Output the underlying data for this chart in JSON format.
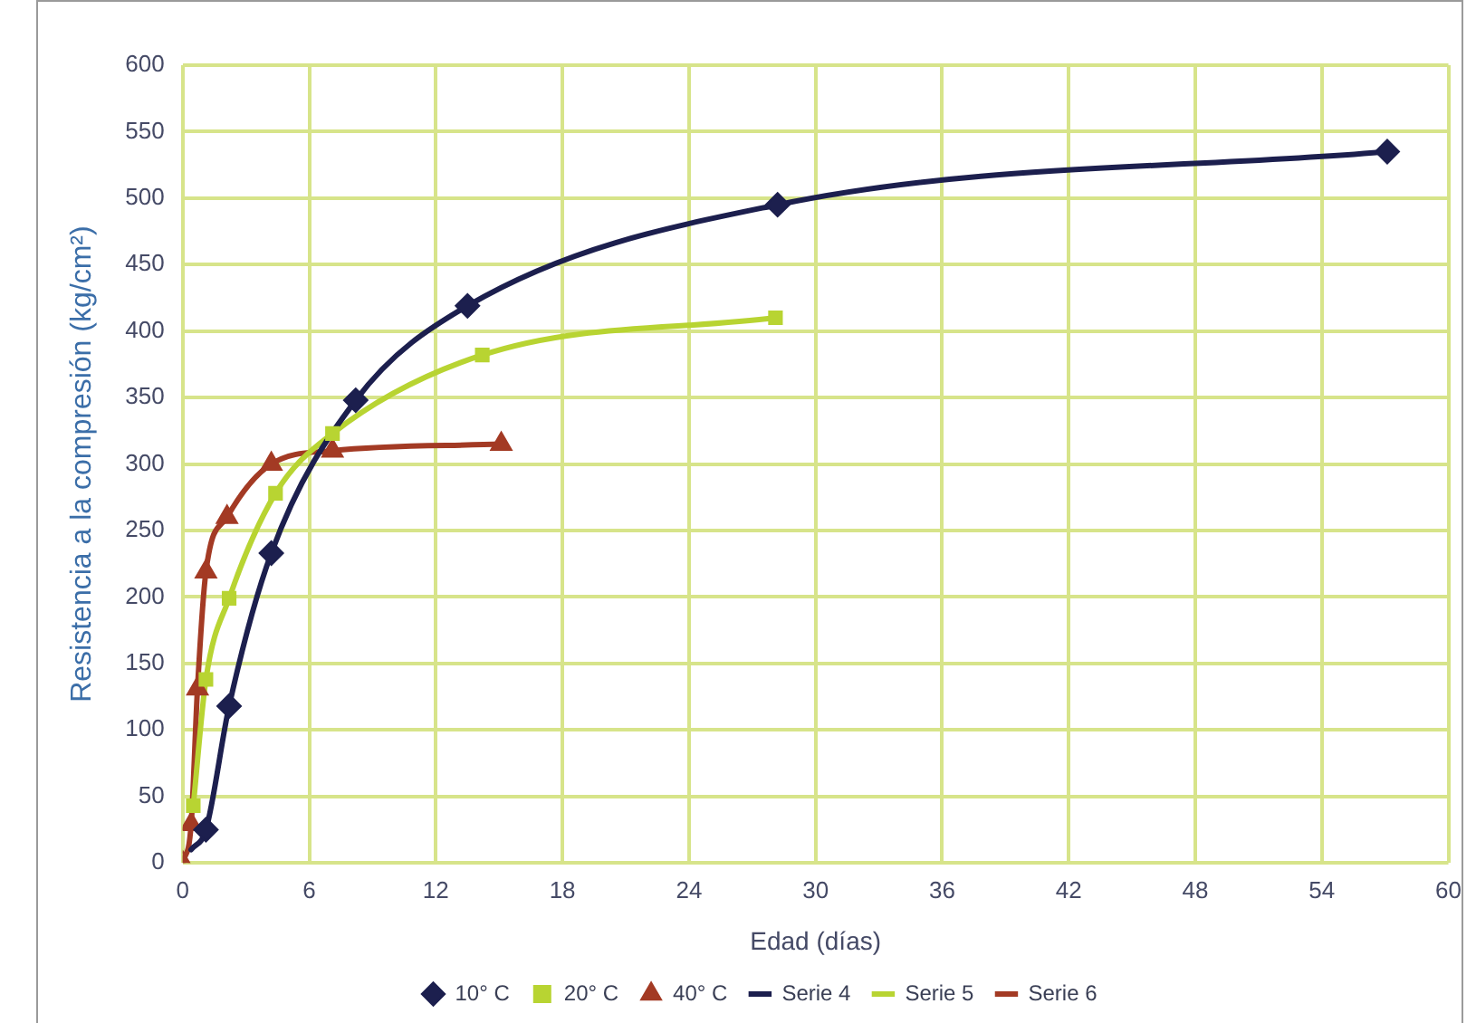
{
  "chart_data": {
    "type": "scatter",
    "xlabel": "Edad (días)",
    "ylabel": "Resistencia a la compresión (kg/cm²)",
    "xlim": [
      0,
      60
    ],
    "xticks": [
      0,
      6,
      12,
      18,
      24,
      30,
      36,
      42,
      48,
      54,
      60
    ],
    "ylim": [
      0,
      600
    ],
    "yticks": [
      0,
      50,
      100,
      150,
      200,
      250,
      300,
      350,
      400,
      450,
      500,
      550,
      600
    ],
    "grid": true,
    "legend": "bottom",
    "series": [
      {
        "name": "10° C",
        "type": "scatter",
        "marker": "diamond",
        "color": "#1c1f4e",
        "x": [
          1.1,
          2.2,
          4.2,
          8.2,
          13.5,
          28.2,
          57.1
        ],
        "values": [
          25,
          118,
          233,
          348,
          419,
          495,
          535
        ]
      },
      {
        "name": "20° C",
        "type": "scatter",
        "marker": "square",
        "color": "#b8d432",
        "x": [
          0.5,
          1.1,
          2.2,
          4.4,
          7.1,
          14.2,
          28.1
        ],
        "values": [
          43,
          138,
          199,
          278,
          323,
          382,
          410
        ]
      },
      {
        "name": "40° C",
        "type": "scatter",
        "marker": "triangle",
        "color": "#a33a24",
        "x": [
          0,
          0.4,
          0.7,
          1.1,
          2.1,
          4.2,
          7.1,
          15.1
        ],
        "values": [
          0,
          29,
          131,
          219,
          260,
          300,
          310,
          315
        ]
      },
      {
        "name": "Serie 4",
        "type": "line",
        "marker": "none",
        "color": "#1c1f4e",
        "x": [
          0.4,
          1.1,
          2.2,
          4.2,
          8.2,
          13.5,
          28.2,
          57.1
        ],
        "values": [
          10,
          25,
          118,
          233,
          348,
          419,
          495,
          535
        ]
      },
      {
        "name": "Serie 5",
        "type": "line",
        "marker": "none",
        "color": "#b8d432",
        "x": [
          0.5,
          1.1,
          2.2,
          4.4,
          7.1,
          14.2,
          28.1
        ],
        "values": [
          43,
          138,
          199,
          278,
          323,
          382,
          410
        ]
      },
      {
        "name": "Serie 6",
        "type": "line",
        "marker": "none",
        "color": "#a33a24",
        "x": [
          0,
          0.4,
          0.7,
          1.1,
          2.1,
          4.2,
          7.1,
          15.1
        ],
        "values": [
          0,
          29,
          131,
          219,
          260,
          300,
          310,
          315
        ]
      }
    ]
  }
}
